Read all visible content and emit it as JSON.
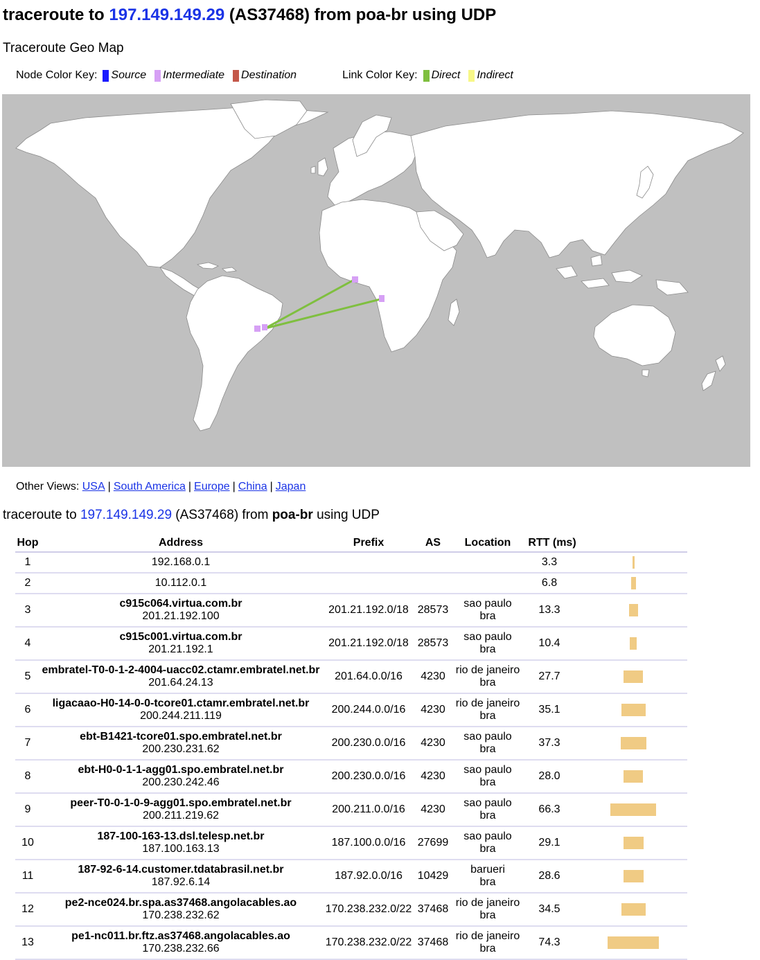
{
  "header": {
    "title_prefix": "traceroute to ",
    "target_ip": "197.149.149.29",
    "title_suffix": " (AS37468) from poa-br using UDP",
    "subtitle": "Traceroute Geo Map"
  },
  "keys": {
    "node_label": "Node Color Key:",
    "nodes": [
      {
        "label": "Source",
        "color": "#1a1aff"
      },
      {
        "label": "Intermediate",
        "color": "#d6a0f5"
      },
      {
        "label": "Destination",
        "color": "#c4584a"
      }
    ],
    "link_label": "Link Color Key:",
    "links": [
      {
        "label": "Direct",
        "color": "#7fbf3f"
      },
      {
        "label": "Indirect",
        "color": "#f7f787"
      }
    ]
  },
  "map": {
    "ocean_color": "#c0c0c0",
    "land_color": "#ffffff",
    "link_color": "#7fbf3f",
    "node_color": "#d6a0f5"
  },
  "other_views": {
    "label": "Other Views:",
    "links": [
      "USA",
      "South America",
      "Europe",
      "China",
      "Japan"
    ]
  },
  "trace_heading": {
    "prefix": "traceroute to ",
    "target_ip": "197.149.149.29",
    "mid": " (AS37468) from ",
    "source": "poa-br",
    "suffix": " using UDP"
  },
  "table": {
    "headers": [
      "Hop",
      "Address",
      "Prefix",
      "AS",
      "Location",
      "RTT (ms)"
    ],
    "rows": [
      {
        "hop": "1",
        "host": "",
        "ip": "192.168.0.1",
        "prefix": "",
        "as": "",
        "city": "",
        "country": "",
        "rtt": "3.3",
        "rtt_ms": 3.3
      },
      {
        "hop": "2",
        "host": "",
        "ip": "10.112.0.1",
        "prefix": "",
        "as": "",
        "city": "",
        "country": "",
        "rtt": "6.8",
        "rtt_ms": 6.8
      },
      {
        "hop": "3",
        "host": "c915c064.virtua.com.br",
        "ip": "201.21.192.100",
        "prefix": "201.21.192.0/18",
        "as": "28573",
        "city": "sao paulo",
        "country": "bra",
        "rtt": "13.3",
        "rtt_ms": 13.3
      },
      {
        "hop": "4",
        "host": "c915c001.virtua.com.br",
        "ip": "201.21.192.1",
        "prefix": "201.21.192.0/18",
        "as": "28573",
        "city": "sao paulo",
        "country": "bra",
        "rtt": "10.4",
        "rtt_ms": 10.4
      },
      {
        "hop": "5",
        "host": "embratel-T0-0-1-2-4004-uacc02.ctamr.embratel.net.br",
        "ip": "201.64.24.13",
        "prefix": "201.64.0.0/16",
        "as": "4230",
        "city": "rio de janeiro",
        "country": "bra",
        "rtt": "27.7",
        "rtt_ms": 27.7
      },
      {
        "hop": "6",
        "host": "ligacaao-H0-14-0-0-tcore01.ctamr.embratel.net.br",
        "ip": "200.244.211.119",
        "prefix": "200.244.0.0/16",
        "as": "4230",
        "city": "rio de janeiro",
        "country": "bra",
        "rtt": "35.1",
        "rtt_ms": 35.1
      },
      {
        "hop": "7",
        "host": "ebt-B1421-tcore01.spo.embratel.net.br",
        "ip": "200.230.231.62",
        "prefix": "200.230.0.0/16",
        "as": "4230",
        "city": "sao paulo",
        "country": "bra",
        "rtt": "37.3",
        "rtt_ms": 37.3
      },
      {
        "hop": "8",
        "host": "ebt-H0-0-1-1-agg01.spo.embratel.net.br",
        "ip": "200.230.242.46",
        "prefix": "200.230.0.0/16",
        "as": "4230",
        "city": "sao paulo",
        "country": "bra",
        "rtt": "28.0",
        "rtt_ms": 28.0
      },
      {
        "hop": "9",
        "host": "peer-T0-0-1-0-9-agg01.spo.embratel.net.br",
        "ip": "200.211.219.62",
        "prefix": "200.211.0.0/16",
        "as": "4230",
        "city": "sao paulo",
        "country": "bra",
        "rtt": "66.3",
        "rtt_ms": 66.3
      },
      {
        "hop": "10",
        "host": "187-100-163-13.dsl.telesp.net.br",
        "ip": "187.100.163.13",
        "prefix": "187.100.0.0/16",
        "as": "27699",
        "city": "sao paulo",
        "country": "bra",
        "rtt": "29.1",
        "rtt_ms": 29.1
      },
      {
        "hop": "11",
        "host": "187-92-6-14.customer.tdatabrasil.net.br",
        "ip": "187.92.6.14",
        "prefix": "187.92.0.0/16",
        "as": "10429",
        "city": "barueri",
        "country": "bra",
        "rtt": "28.6",
        "rtt_ms": 28.6
      },
      {
        "hop": "12",
        "host": "pe2-nce024.br.spa.as37468.angolacables.ao",
        "ip": "170.238.232.62",
        "prefix": "170.238.232.0/22",
        "as": "37468",
        "city": "rio de janeiro",
        "country": "bra",
        "rtt": "34.5",
        "rtt_ms": 34.5
      },
      {
        "hop": "13",
        "host": "pe1-nc011.br.ftz.as37468.angolacables.ao",
        "ip": "170.238.232.66",
        "prefix": "170.238.232.0/22",
        "as": "37468",
        "city": "rio de janeiro",
        "country": "bra",
        "rtt": "74.3",
        "rtt_ms": 74.3
      }
    ]
  }
}
